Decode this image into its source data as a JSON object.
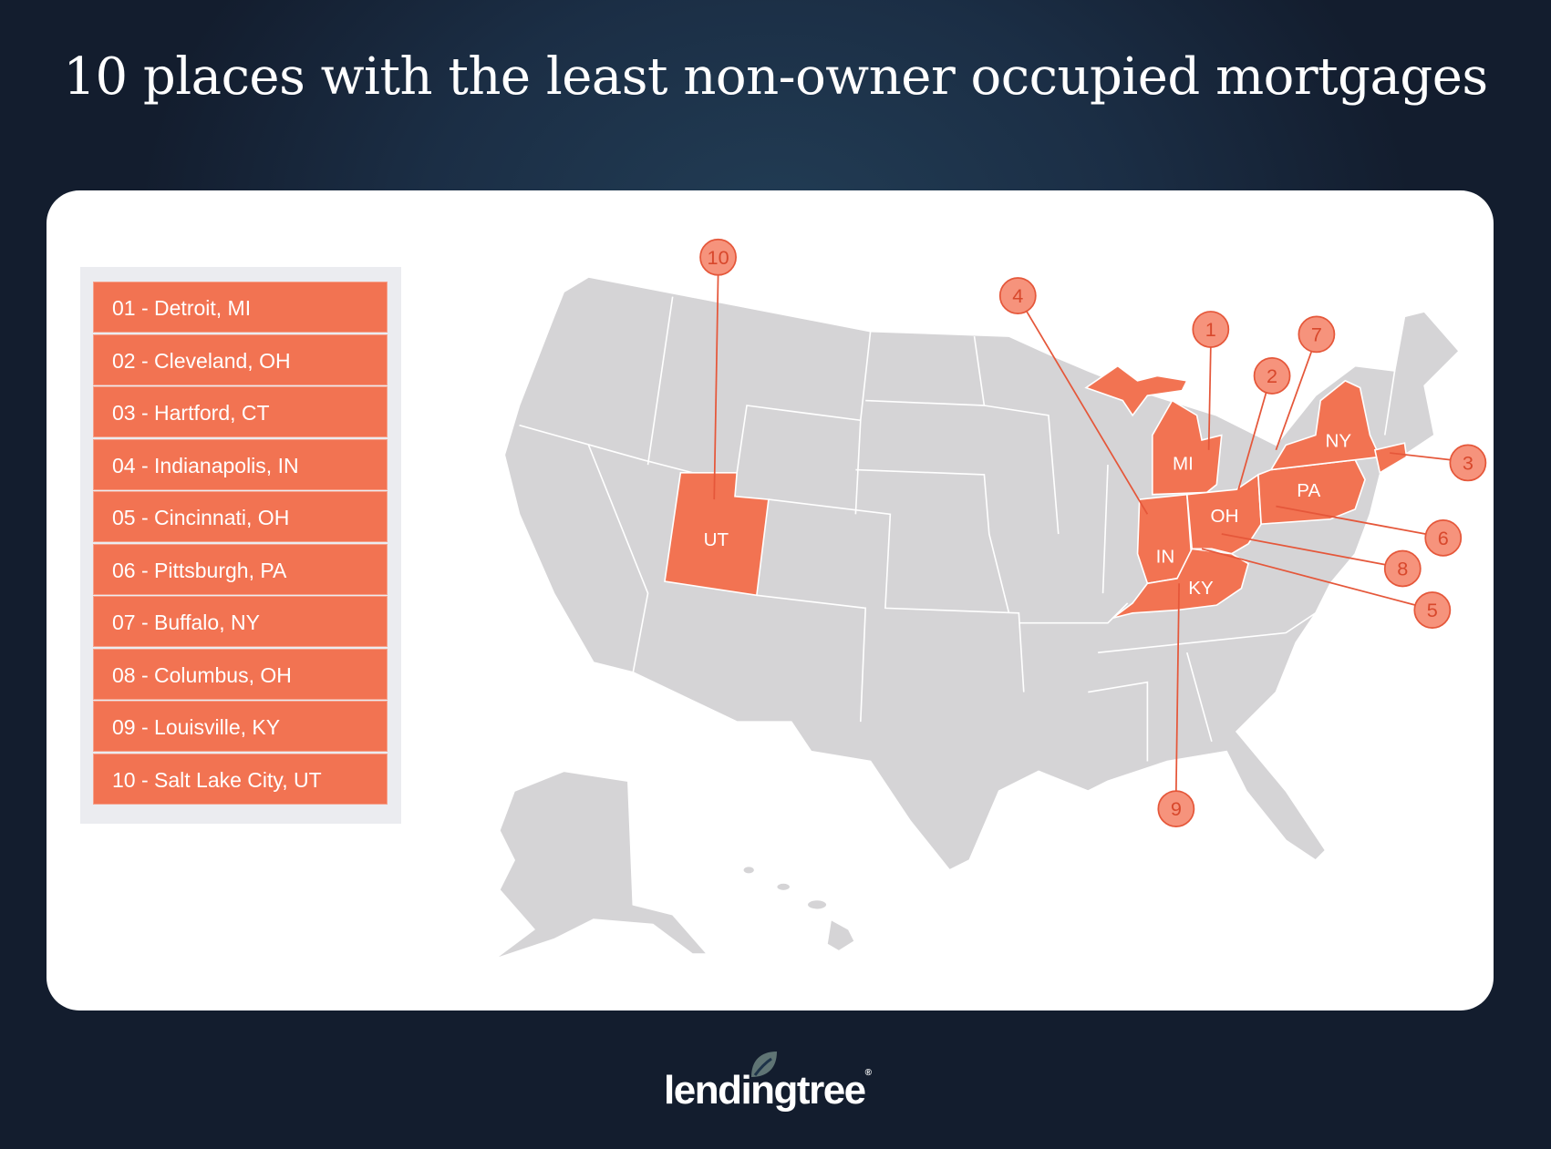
{
  "title": "10 places with the least non-owner occupied mortgages",
  "list": [
    "01 - Detroit, MI",
    "02 - Cleveland, OH",
    "03 - Hartford, CT",
    "04 - Indianapolis, IN",
    "05 - Cincinnati, OH",
    "06 - Pittsburgh, PA",
    "07 - Buffalo, NY",
    "08 - Columbus, OH",
    "09 - Louisville, KY",
    "10 - Salt Lake City, UT"
  ],
  "state_labels": {
    "UT": "UT",
    "MI": "MI",
    "IN": "IN",
    "OH": "OH",
    "KY": "KY",
    "PA": "PA",
    "NY": "NY"
  },
  "callouts": [
    "1",
    "2",
    "3",
    "4",
    "5",
    "6",
    "7",
    "8",
    "9",
    "10"
  ],
  "logo": {
    "text": "lendingtree",
    "reg": "®"
  },
  "colors": {
    "highlight": "#f27352",
    "callout_fill": "#f6937c",
    "callout_stroke": "#e5573a",
    "state_grey": "#d5d4d6",
    "background": "#17253a"
  }
}
